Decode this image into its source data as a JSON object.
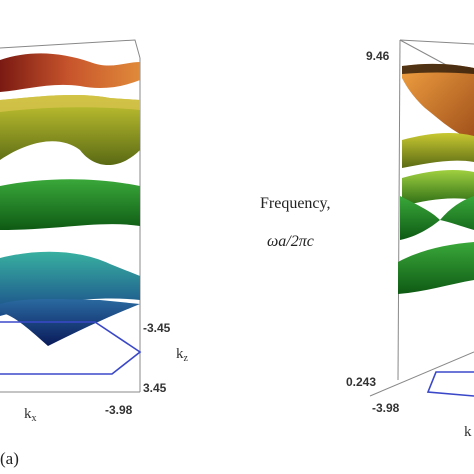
{
  "chart_data": [
    {
      "type": "other",
      "panel": "(a)",
      "description_type": "3d-band-surface",
      "bands": 5,
      "tick_labels": [
        "-3.45",
        "3.45",
        "-3.98"
      ],
      "axis_labels": {
        "kz": "k",
        "kz_sub": "z",
        "kx": "k",
        "kx_sub": "x"
      },
      "band_colors": [
        "#b03a2e",
        "#9a9a1c",
        "#1e8a1e",
        "#1f8a8a",
        "#1a3a9a"
      ]
    },
    {
      "type": "other",
      "description_type": "3d-band-surface",
      "bands": 5,
      "tick_labels": [
        "9.46",
        "0.243",
        "-3.98"
      ],
      "axis_labels": {
        "kx": "k"
      },
      "band_colors": [
        "#c8641e",
        "#9a9a1c",
        "#5aa01e",
        "#1e8a1e",
        "#2a9a3a"
      ]
    }
  ],
  "freq_label": {
    "line1": "Frequency,",
    "line2": "ωa/2πc"
  }
}
